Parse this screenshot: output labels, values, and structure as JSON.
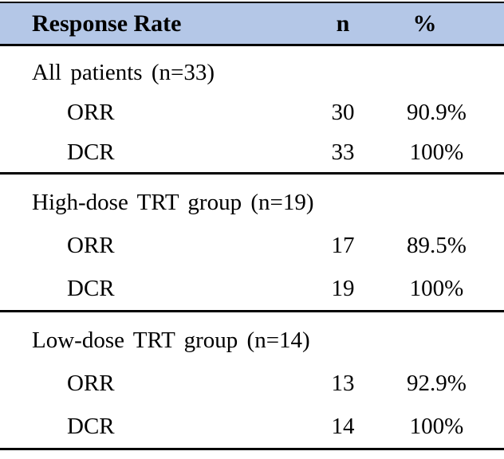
{
  "table": {
    "header": {
      "response_rate": "Response Rate",
      "n": "n",
      "percent": "%"
    },
    "sections": [
      {
        "group": "All patients (n=33)",
        "rows": [
          {
            "label": "ORR",
            "n": "30",
            "pct": "90.9%"
          },
          {
            "label": "DCR",
            "n": "33",
            "pct": "100%"
          }
        ]
      },
      {
        "group": "High-dose TRT group (n=19)",
        "rows": [
          {
            "label": "ORR",
            "n": "17",
            "pct": "89.5%"
          },
          {
            "label": "DCR",
            "n": "19",
            "pct": "100%"
          }
        ]
      },
      {
        "group": "Low-dose TRT group (n=14)",
        "rows": [
          {
            "label": "ORR",
            "n": "13",
            "pct": "92.9%"
          },
          {
            "label": "DCR",
            "n": "14",
            "pct": "100%"
          }
        ]
      }
    ],
    "colors": {
      "header_bg": "#b4c7e7",
      "border": "#000000",
      "text": "#000000",
      "background": "#ffffff"
    }
  },
  "chart_data": {
    "type": "table",
    "title": "Response Rate",
    "columns": [
      "Response Rate",
      "n",
      "%"
    ],
    "rows": [
      [
        "All patients (n=33)",
        "",
        ""
      ],
      [
        "ORR",
        "30",
        "90.9%"
      ],
      [
        "DCR",
        "33",
        "100%"
      ],
      [
        "High-dose TRT group (n=19)",
        "",
        ""
      ],
      [
        "ORR",
        "17",
        "89.5%"
      ],
      [
        "DCR",
        "19",
        "100%"
      ],
      [
        "Low-dose TRT group (n=14)",
        "",
        ""
      ],
      [
        "ORR",
        "13",
        "92.9%"
      ],
      [
        "DCR",
        "14",
        "100%"
      ]
    ]
  }
}
